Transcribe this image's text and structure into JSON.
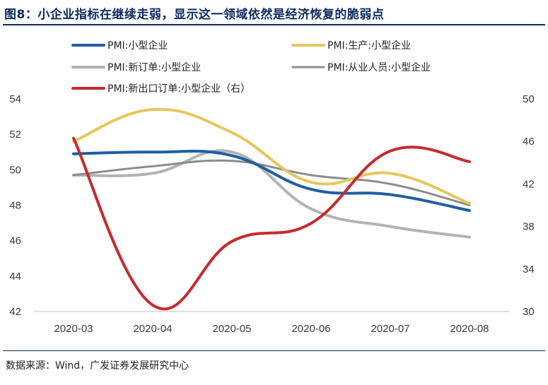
{
  "title": "图8：小企业指标在继续走弱，显示这一领域依然是经济恢复的脆弱点",
  "source": "数据来源：Wind，广发证券发展研究中心",
  "chart_data": {
    "type": "line",
    "title": "图8：小企业指标在继续走弱，显示这一领域依然是经济恢复的脆弱点",
    "categories": [
      "2020-03",
      "2020-04",
      "2020-05",
      "2020-06",
      "2020-07",
      "2020-08"
    ],
    "left_axis": {
      "min": 42,
      "max": 54,
      "ticks": [
        42,
        44,
        46,
        48,
        50,
        52,
        54
      ]
    },
    "right_axis": {
      "min": 30,
      "max": 50,
      "ticks": [
        30,
        34,
        38,
        42,
        46,
        50
      ]
    },
    "series": [
      {
        "name": "PMI:小型企业",
        "axis": "left",
        "color": "#1f5fa0",
        "values": [
          50.9,
          51.0,
          50.8,
          48.9,
          48.6,
          47.7
        ]
      },
      {
        "name": "PMI:生产:小型企业",
        "axis": "left",
        "color": "#e6c75a",
        "values": [
          51.6,
          53.4,
          52.1,
          49.3,
          49.8,
          48.1
        ]
      },
      {
        "name": "PMI:新订单:小型企业",
        "axis": "left",
        "color": "#b3b3b3",
        "values": [
          49.7,
          49.8,
          51.0,
          47.8,
          46.8,
          46.2
        ]
      },
      {
        "name": "PMI:从业人员:小型企业",
        "axis": "left",
        "color": "#8c8c8c",
        "values": [
          49.7,
          50.2,
          50.5,
          49.7,
          49.2,
          48.0
        ]
      },
      {
        "name": "PMI:新出口订单:小型企业（右）",
        "axis": "right",
        "color": "#c62a2f",
        "values": [
          46.3,
          30.6,
          36.6,
          38.3,
          45.1,
          44.1
        ]
      }
    ]
  }
}
